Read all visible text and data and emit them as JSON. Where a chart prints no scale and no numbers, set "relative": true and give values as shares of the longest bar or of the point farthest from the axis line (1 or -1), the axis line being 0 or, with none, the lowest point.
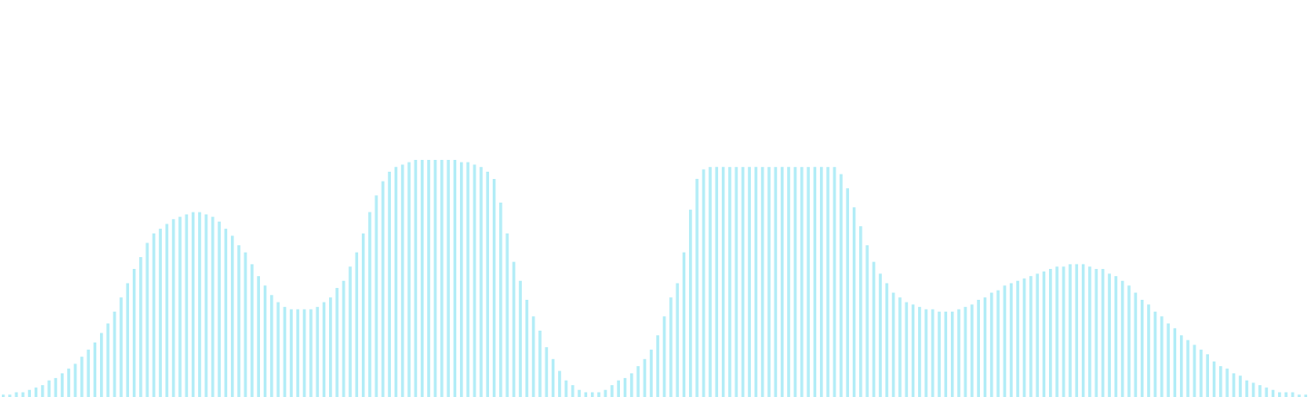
{
  "chart_data": {
    "type": "bar",
    "relative": true,
    "color": "#b3edf7",
    "categories": [
      null,
      null,
      null,
      null,
      null,
      null,
      null,
      null,
      null,
      null,
      null,
      null,
      null,
      null,
      null,
      null,
      null,
      null,
      null,
      null,
      null,
      null,
      null,
      null,
      null,
      null,
      null,
      null,
      null,
      null,
      null,
      null,
      null,
      null,
      null,
      null,
      null,
      null,
      null,
      null,
      null,
      null,
      null,
      null,
      null,
      null,
      null,
      null,
      null,
      null,
      null,
      null,
      null,
      null,
      null,
      null,
      null,
      null,
      null,
      null,
      null,
      null,
      null,
      null,
      null,
      null,
      null,
      null,
      null,
      null,
      null,
      null,
      null,
      null,
      null,
      null,
      null,
      null,
      null,
      null,
      null,
      null,
      null,
      null,
      null,
      null,
      null,
      null,
      null,
      null,
      null,
      null,
      null,
      null,
      null,
      null,
      null,
      null,
      null,
      null,
      null,
      null,
      null,
      null,
      null,
      null,
      null,
      null,
      null,
      null,
      null,
      null,
      null,
      null,
      null,
      null,
      null,
      null,
      null,
      null,
      null,
      null,
      null,
      null,
      null,
      null,
      null,
      null,
      null,
      null,
      null,
      null,
      null,
      null,
      null,
      null,
      null,
      null,
      null,
      null,
      null,
      null,
      null,
      null,
      null,
      null,
      null,
      null,
      null,
      null,
      null,
      null,
      null,
      null,
      null,
      null,
      null,
      null,
      null,
      null,
      null,
      null,
      null,
      null,
      null,
      null,
      null,
      null,
      null,
      null,
      null,
      null,
      null,
      null,
      null,
      null,
      null,
      null,
      null,
      null,
      null,
      null,
      null,
      null,
      null,
      null,
      null,
      null,
      null,
      null,
      null,
      null,
      null,
      null,
      null,
      null,
      null,
      null,
      null,
      null
    ],
    "values": [
      0.01,
      0.01,
      0.02,
      0.02,
      0.03,
      0.04,
      0.05,
      0.07,
      0.08,
      0.1,
      0.12,
      0.14,
      0.17,
      0.2,
      0.23,
      0.27,
      0.31,
      0.36,
      0.42,
      0.48,
      0.54,
      0.59,
      0.65,
      0.69,
      0.71,
      0.73,
      0.75,
      0.76,
      0.77,
      0.78,
      0.78,
      0.77,
      0.76,
      0.74,
      0.71,
      0.68,
      0.64,
      0.61,
      0.56,
      0.51,
      0.47,
      0.43,
      0.4,
      0.38,
      0.37,
      0.37,
      0.37,
      0.37,
      0.38,
      0.4,
      0.42,
      0.46,
      0.49,
      0.55,
      0.61,
      0.69,
      0.78,
      0.85,
      0.91,
      0.95,
      0.97,
      0.98,
      0.99,
      1.0,
      1,
      1,
      1,
      1,
      1.0,
      1.0,
      0.99,
      0.99,
      0.98,
      0.97,
      0.95,
      0.92,
      0.82,
      0.69,
      0.57,
      0.49,
      0.41,
      0.34,
      0.28,
      0.21,
      0.16,
      0.11,
      0.07,
      0.05,
      0.03,
      0.02,
      0.02,
      0.02,
      0.03,
      0.05,
      0.07,
      0.08,
      0.1,
      0.13,
      0.16,
      0.2,
      0.26,
      0.34,
      0.42,
      0.48,
      0.61,
      0.79,
      0.92,
      0.96,
      0.97,
      0.97,
      0.97,
      0.97,
      0.97,
      0.97,
      0.97,
      0.97,
      0.97,
      0.97,
      0.97,
      0.97,
      0.97,
      0.97,
      0.97,
      0.97,
      0.97,
      0.97,
      0.97,
      0.97,
      0.94,
      0.88,
      0.8,
      0.72,
      0.64,
      0.57,
      0.52,
      0.48,
      0.44,
      0.42,
      0.4,
      0.39,
      0.38,
      0.37,
      0.37,
      0.36,
      0.36,
      0.36,
      0.37,
      0.38,
      0.39,
      0.41,
      0.42,
      0.44,
      0.45,
      0.47,
      0.48,
      0.49,
      0.5,
      0.51,
      0.52,
      0.53,
      0.54,
      0.55,
      0.55,
      0.56,
      0.56,
      0.56,
      0.55,
      0.54,
      0.54,
      0.52,
      0.51,
      0.49,
      0.47,
      0.44,
      0.41,
      0.39,
      0.36,
      0.34,
      0.31,
      0.29,
      0.26,
      0.24,
      0.22,
      0.2,
      0.18,
      0.15,
      0.13,
      0.12,
      0.1,
      0.09,
      0.07,
      0.06,
      0.05,
      0.04,
      0.03,
      0.02,
      0.02,
      0.02,
      0.01,
      0.01
    ]
  }
}
